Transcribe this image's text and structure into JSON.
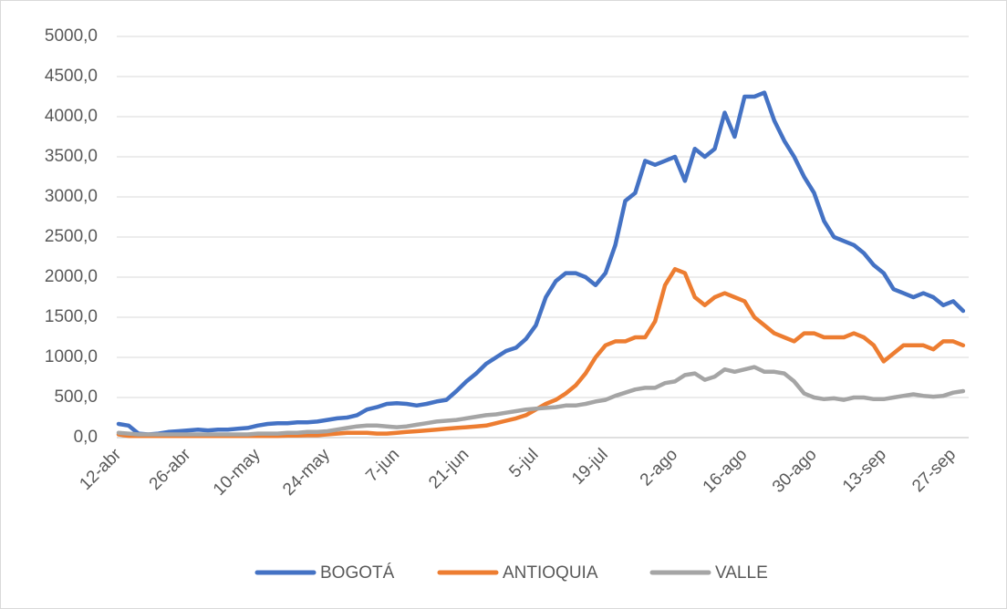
{
  "chart_data": {
    "type": "line",
    "categories": [
      "12-abr",
      null,
      null,
      null,
      null,
      null,
      null,
      "26-abr",
      null,
      null,
      null,
      null,
      null,
      null,
      "10-may",
      null,
      null,
      null,
      null,
      null,
      null,
      "24-may",
      null,
      null,
      null,
      null,
      null,
      null,
      "7-jun",
      null,
      null,
      null,
      null,
      null,
      null,
      "21-jun",
      null,
      null,
      null,
      null,
      null,
      null,
      "5-jul",
      null,
      null,
      null,
      null,
      null,
      null,
      "19-jul",
      null,
      null,
      null,
      null,
      null,
      null,
      "2-ago",
      null,
      null,
      null,
      null,
      null,
      null,
      "16-ago",
      null,
      null,
      null,
      null,
      null,
      null,
      "30-ago",
      null,
      null,
      null,
      null,
      null,
      null,
      "13-sep",
      null,
      null,
      null,
      null,
      null,
      null,
      "27-sep",
      null
    ],
    "series": [
      {
        "name": "BOGOTÁ",
        "color": "#4472c4",
        "values": [
          170,
          150,
          50,
          40,
          50,
          70,
          80,
          90,
          100,
          90,
          100,
          100,
          110,
          120,
          150,
          170,
          180,
          180,
          190,
          190,
          200,
          220,
          240,
          250,
          280,
          350,
          380,
          420,
          430,
          420,
          400,
          420,
          450,
          470,
          580,
          700,
          800,
          920,
          1000,
          1080,
          1120,
          1230,
          1400,
          1750,
          1950,
          2050,
          2050,
          2000,
          1900,
          2050,
          2400,
          2950,
          3050,
          3450,
          3400,
          3450,
          3500,
          3200,
          3600,
          3500,
          3600,
          4050,
          3750,
          4250,
          4250,
          4300,
          3950,
          3700,
          3500,
          3250,
          3050,
          2700,
          2500,
          2450,
          2400,
          2300,
          2150,
          2050,
          1850,
          1800,
          1750,
          1800,
          1750,
          1650,
          1700,
          1580
        ]
      },
      {
        "name": "ANTIOQUIA",
        "color": "#ed7d31",
        "values": [
          40,
          20,
          20,
          20,
          20,
          20,
          20,
          20,
          20,
          20,
          20,
          20,
          20,
          20,
          20,
          20,
          20,
          25,
          25,
          30,
          30,
          40,
          50,
          60,
          60,
          60,
          50,
          50,
          60,
          70,
          80,
          90,
          100,
          110,
          120,
          130,
          140,
          150,
          180,
          210,
          240,
          280,
          350,
          420,
          470,
          550,
          650,
          800,
          1000,
          1150,
          1200,
          1200,
          1250,
          1250,
          1450,
          1900,
          2100,
          2050,
          1750,
          1650,
          1750,
          1800,
          1750,
          1700,
          1500,
          1400,
          1300,
          1250,
          1200,
          1300,
          1300,
          1250,
          1250,
          1250,
          1300,
          1250,
          1150,
          950,
          1050,
          1150,
          1150,
          1150,
          1100,
          1200,
          1200,
          1150
        ]
      },
      {
        "name": "VALLE",
        "color": "#a5a5a5",
        "values": [
          60,
          50,
          40,
          40,
          40,
          40,
          40,
          40,
          40,
          40,
          40,
          40,
          40,
          40,
          50,
          50,
          50,
          60,
          60,
          70,
          70,
          80,
          100,
          120,
          140,
          150,
          150,
          140,
          130,
          140,
          160,
          180,
          200,
          210,
          220,
          240,
          260,
          280,
          290,
          310,
          330,
          350,
          360,
          370,
          380,
          400,
          400,
          420,
          450,
          470,
          520,
          560,
          600,
          620,
          620,
          680,
          700,
          780,
          800,
          720,
          760,
          850,
          820,
          850,
          880,
          820,
          820,
          800,
          700,
          550,
          500,
          480,
          490,
          470,
          500,
          500,
          480,
          480,
          500,
          520,
          540,
          520,
          510,
          520,
          560,
          580
        ]
      }
    ],
    "ylim": [
      0,
      5000
    ],
    "yticks": [
      {
        "value": 0,
        "label": "0,0"
      },
      {
        "value": 500,
        "label": "500,0"
      },
      {
        "value": 1000,
        "label": "1000,0"
      },
      {
        "value": 1500,
        "label": "1500,0"
      },
      {
        "value": 2000,
        "label": "2000,0"
      },
      {
        "value": 2500,
        "label": "2500,0"
      },
      {
        "value": 3000,
        "label": "3000,0"
      },
      {
        "value": 3500,
        "label": "3500,0"
      },
      {
        "value": 4000,
        "label": "4000,0"
      },
      {
        "value": 4500,
        "label": "4500,0"
      },
      {
        "value": 5000,
        "label": "5000,0"
      }
    ],
    "grid": true,
    "legend": "bottom"
  }
}
